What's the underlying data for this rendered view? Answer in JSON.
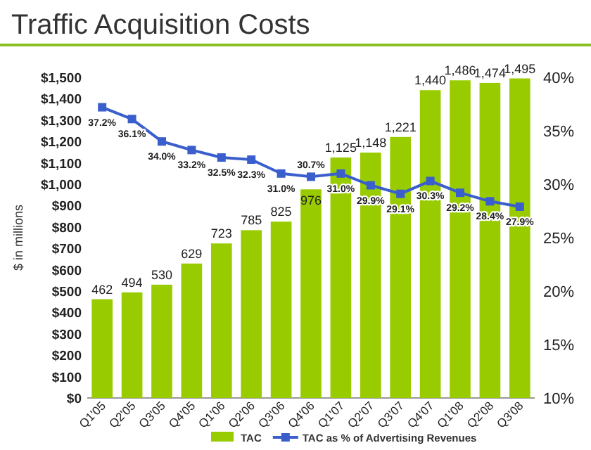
{
  "chart_data": {
    "type": "bar",
    "title": "Traffic Acquisition Costs",
    "ylabel": "$ in millions",
    "categories": [
      "Q1'05",
      "Q2'05",
      "Q3'05",
      "Q4'05",
      "Q1'06",
      "Q2'06",
      "Q3'06",
      "Q4'06",
      "Q1'07",
      "Q2'07",
      "Q3'07",
      "Q4'07",
      "Q1'08",
      "Q2'08",
      "Q3'08"
    ],
    "series": [
      {
        "name": "TAC",
        "color": "#99cc00",
        "values": [
          462,
          494,
          530,
          629,
          723,
          785,
          825,
          976,
          1125,
          1148,
          1221,
          1440,
          1486,
          1474,
          1495
        ],
        "value_labels": [
          "462",
          "494",
          "530",
          "629",
          "723",
          "785",
          "825",
          "976",
          "1,125",
          "1,148",
          "1,221",
          "1,440",
          "1,486",
          "1,474",
          "1,495"
        ]
      },
      {
        "name": "TAC as % of Advertising Revenues",
        "type": "line",
        "axis": "y2",
        "color": "#3a5fcd",
        "values": [
          37.2,
          36.1,
          34.0,
          33.2,
          32.5,
          32.3,
          31.0,
          30.7,
          31.0,
          29.9,
          29.1,
          30.3,
          29.2,
          28.4,
          27.9
        ],
        "value_labels": [
          "37.2%",
          "36.1%",
          "34.0%",
          "33.2%",
          "32.5%",
          "32.3%",
          "31.0%",
          "30.7%",
          "31.0%",
          "29.9%",
          "29.1%",
          "30.3%",
          "29.2%",
          "28.4%",
          "27.9%"
        ]
      }
    ],
    "ylim": [
      0,
      1500
    ],
    "yticks": [
      {
        "value": 0,
        "label": "$0"
      },
      {
        "value": 100,
        "label": "$100"
      },
      {
        "value": 200,
        "label": "$200"
      },
      {
        "value": 300,
        "label": "$300"
      },
      {
        "value": 400,
        "label": "$400"
      },
      {
        "value": 500,
        "label": "$500"
      },
      {
        "value": 600,
        "label": "$600"
      },
      {
        "value": 700,
        "label": "$700"
      },
      {
        "value": 800,
        "label": "$800"
      },
      {
        "value": 900,
        "label": "$900"
      },
      {
        "value": 1000,
        "label": "$1,000"
      },
      {
        "value": 1100,
        "label": "$1,100"
      },
      {
        "value": 1200,
        "label": "$1,200"
      },
      {
        "value": 1300,
        "label": "$1,300"
      },
      {
        "value": 1400,
        "label": "$1,400"
      },
      {
        "value": 1500,
        "label": "$1,500"
      }
    ],
    "y2lim": [
      10,
      40
    ],
    "y2ticks": [
      {
        "value": 10,
        "label": "10%"
      },
      {
        "value": 15,
        "label": "15%"
      },
      {
        "value": 20,
        "label": "20%"
      },
      {
        "value": 25,
        "label": "25%"
      },
      {
        "value": 30,
        "label": "30%"
      },
      {
        "value": 35,
        "label": "35%"
      },
      {
        "value": 40,
        "label": "40%"
      }
    ],
    "marker": "square",
    "line_style": "solid",
    "legend": "bottom"
  }
}
